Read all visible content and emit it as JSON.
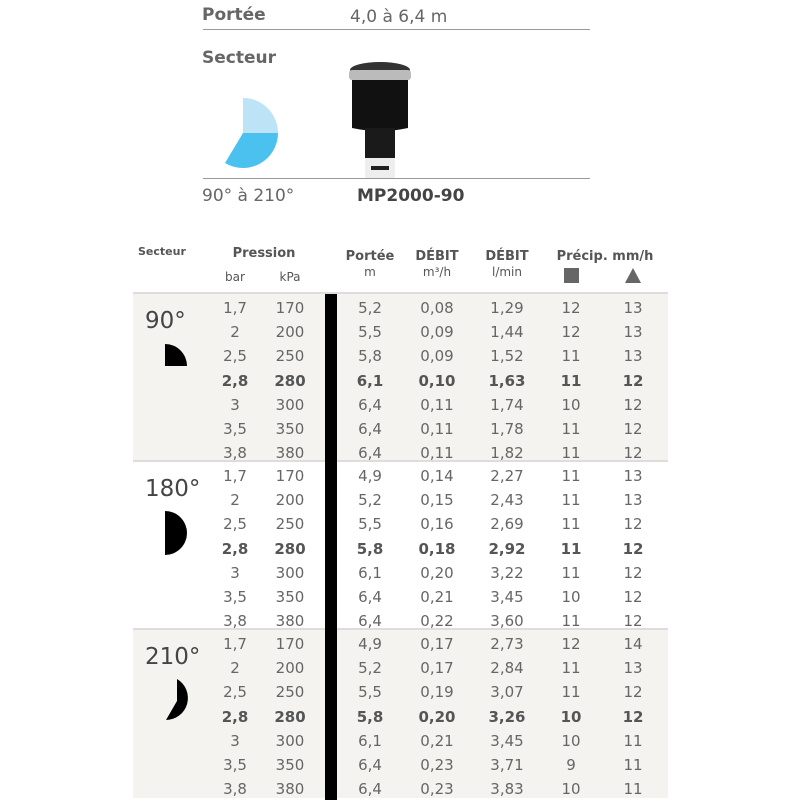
{
  "summary": {
    "range_label": "Portée",
    "range_value": "4,0 à 6,4 m",
    "sector_label": "Secteur",
    "sector_value": "90° à 210°",
    "model": "MP2000-90",
    "colors": {
      "sector_light": "#bde3f7",
      "sector_dark": "#4bc1ef"
    }
  },
  "table": {
    "headers": {
      "secteur": "Secteur",
      "pression": "Pression",
      "bar": "bar",
      "kpa": "kPa",
      "portee": "Portée",
      "portee_unit": "m",
      "debit1": "DÉBIT",
      "debit1_unit": "m³/h",
      "debit2": "DÉBIT",
      "debit2_unit": "l/min",
      "precip": "Précip. mm/h",
      "square_icon": "square",
      "triangle_icon": "triangle"
    },
    "groups": [
      {
        "sector": "90°",
        "shaded": true,
        "rows": [
          [
            "1,7",
            "170",
            "5,2",
            "0,08",
            "1,29",
            "12",
            "13"
          ],
          [
            "2",
            "200",
            "5,5",
            "0,09",
            "1,44",
            "12",
            "13"
          ],
          [
            "2,5",
            "250",
            "5,8",
            "0,09",
            "1,52",
            "11",
            "13"
          ],
          [
            "2,8",
            "280",
            "6,1",
            "0,10",
            "1,63",
            "11",
            "12"
          ],
          [
            "3",
            "300",
            "6,4",
            "0,11",
            "1,74",
            "10",
            "12"
          ],
          [
            "3,5",
            "350",
            "6,4",
            "0,11",
            "1,78",
            "11",
            "12"
          ],
          [
            "3,8",
            "380",
            "6,4",
            "0,11",
            "1,82",
            "11",
            "12"
          ]
        ]
      },
      {
        "sector": "180°",
        "shaded": false,
        "rows": [
          [
            "1,7",
            "170",
            "4,9",
            "0,14",
            "2,27",
            "11",
            "13"
          ],
          [
            "2",
            "200",
            "5,2",
            "0,15",
            "2,43",
            "11",
            "13"
          ],
          [
            "2,5",
            "250",
            "5,5",
            "0,16",
            "2,69",
            "11",
            "12"
          ],
          [
            "2,8",
            "280",
            "5,8",
            "0,18",
            "2,92",
            "11",
            "12"
          ],
          [
            "3",
            "300",
            "6,1",
            "0,20",
            "3,22",
            "11",
            "12"
          ],
          [
            "3,5",
            "350",
            "6,4",
            "0,21",
            "3,45",
            "10",
            "12"
          ],
          [
            "3,8",
            "380",
            "6,4",
            "0,22",
            "3,60",
            "11",
            "12"
          ]
        ]
      },
      {
        "sector": "210°",
        "shaded": true,
        "rows": [
          [
            "1,7",
            "170",
            "4,9",
            "0,17",
            "2,73",
            "12",
            "14"
          ],
          [
            "2",
            "200",
            "5,2",
            "0,17",
            "2,84",
            "11",
            "13"
          ],
          [
            "2,5",
            "250",
            "5,5",
            "0,19",
            "3,07",
            "11",
            "12"
          ],
          [
            "2,8",
            "280",
            "5,8",
            "0,20",
            "3,26",
            "10",
            "12"
          ],
          [
            "3",
            "300",
            "6,1",
            "0,21",
            "3,45",
            "10",
            "11"
          ],
          [
            "3,5",
            "350",
            "6,4",
            "0,23",
            "3,71",
            "9",
            "11"
          ],
          [
            "3,8",
            "380",
            "6,4",
            "0,23",
            "3,83",
            "10",
            "11"
          ]
        ]
      }
    ],
    "bold_row_index": 3
  }
}
